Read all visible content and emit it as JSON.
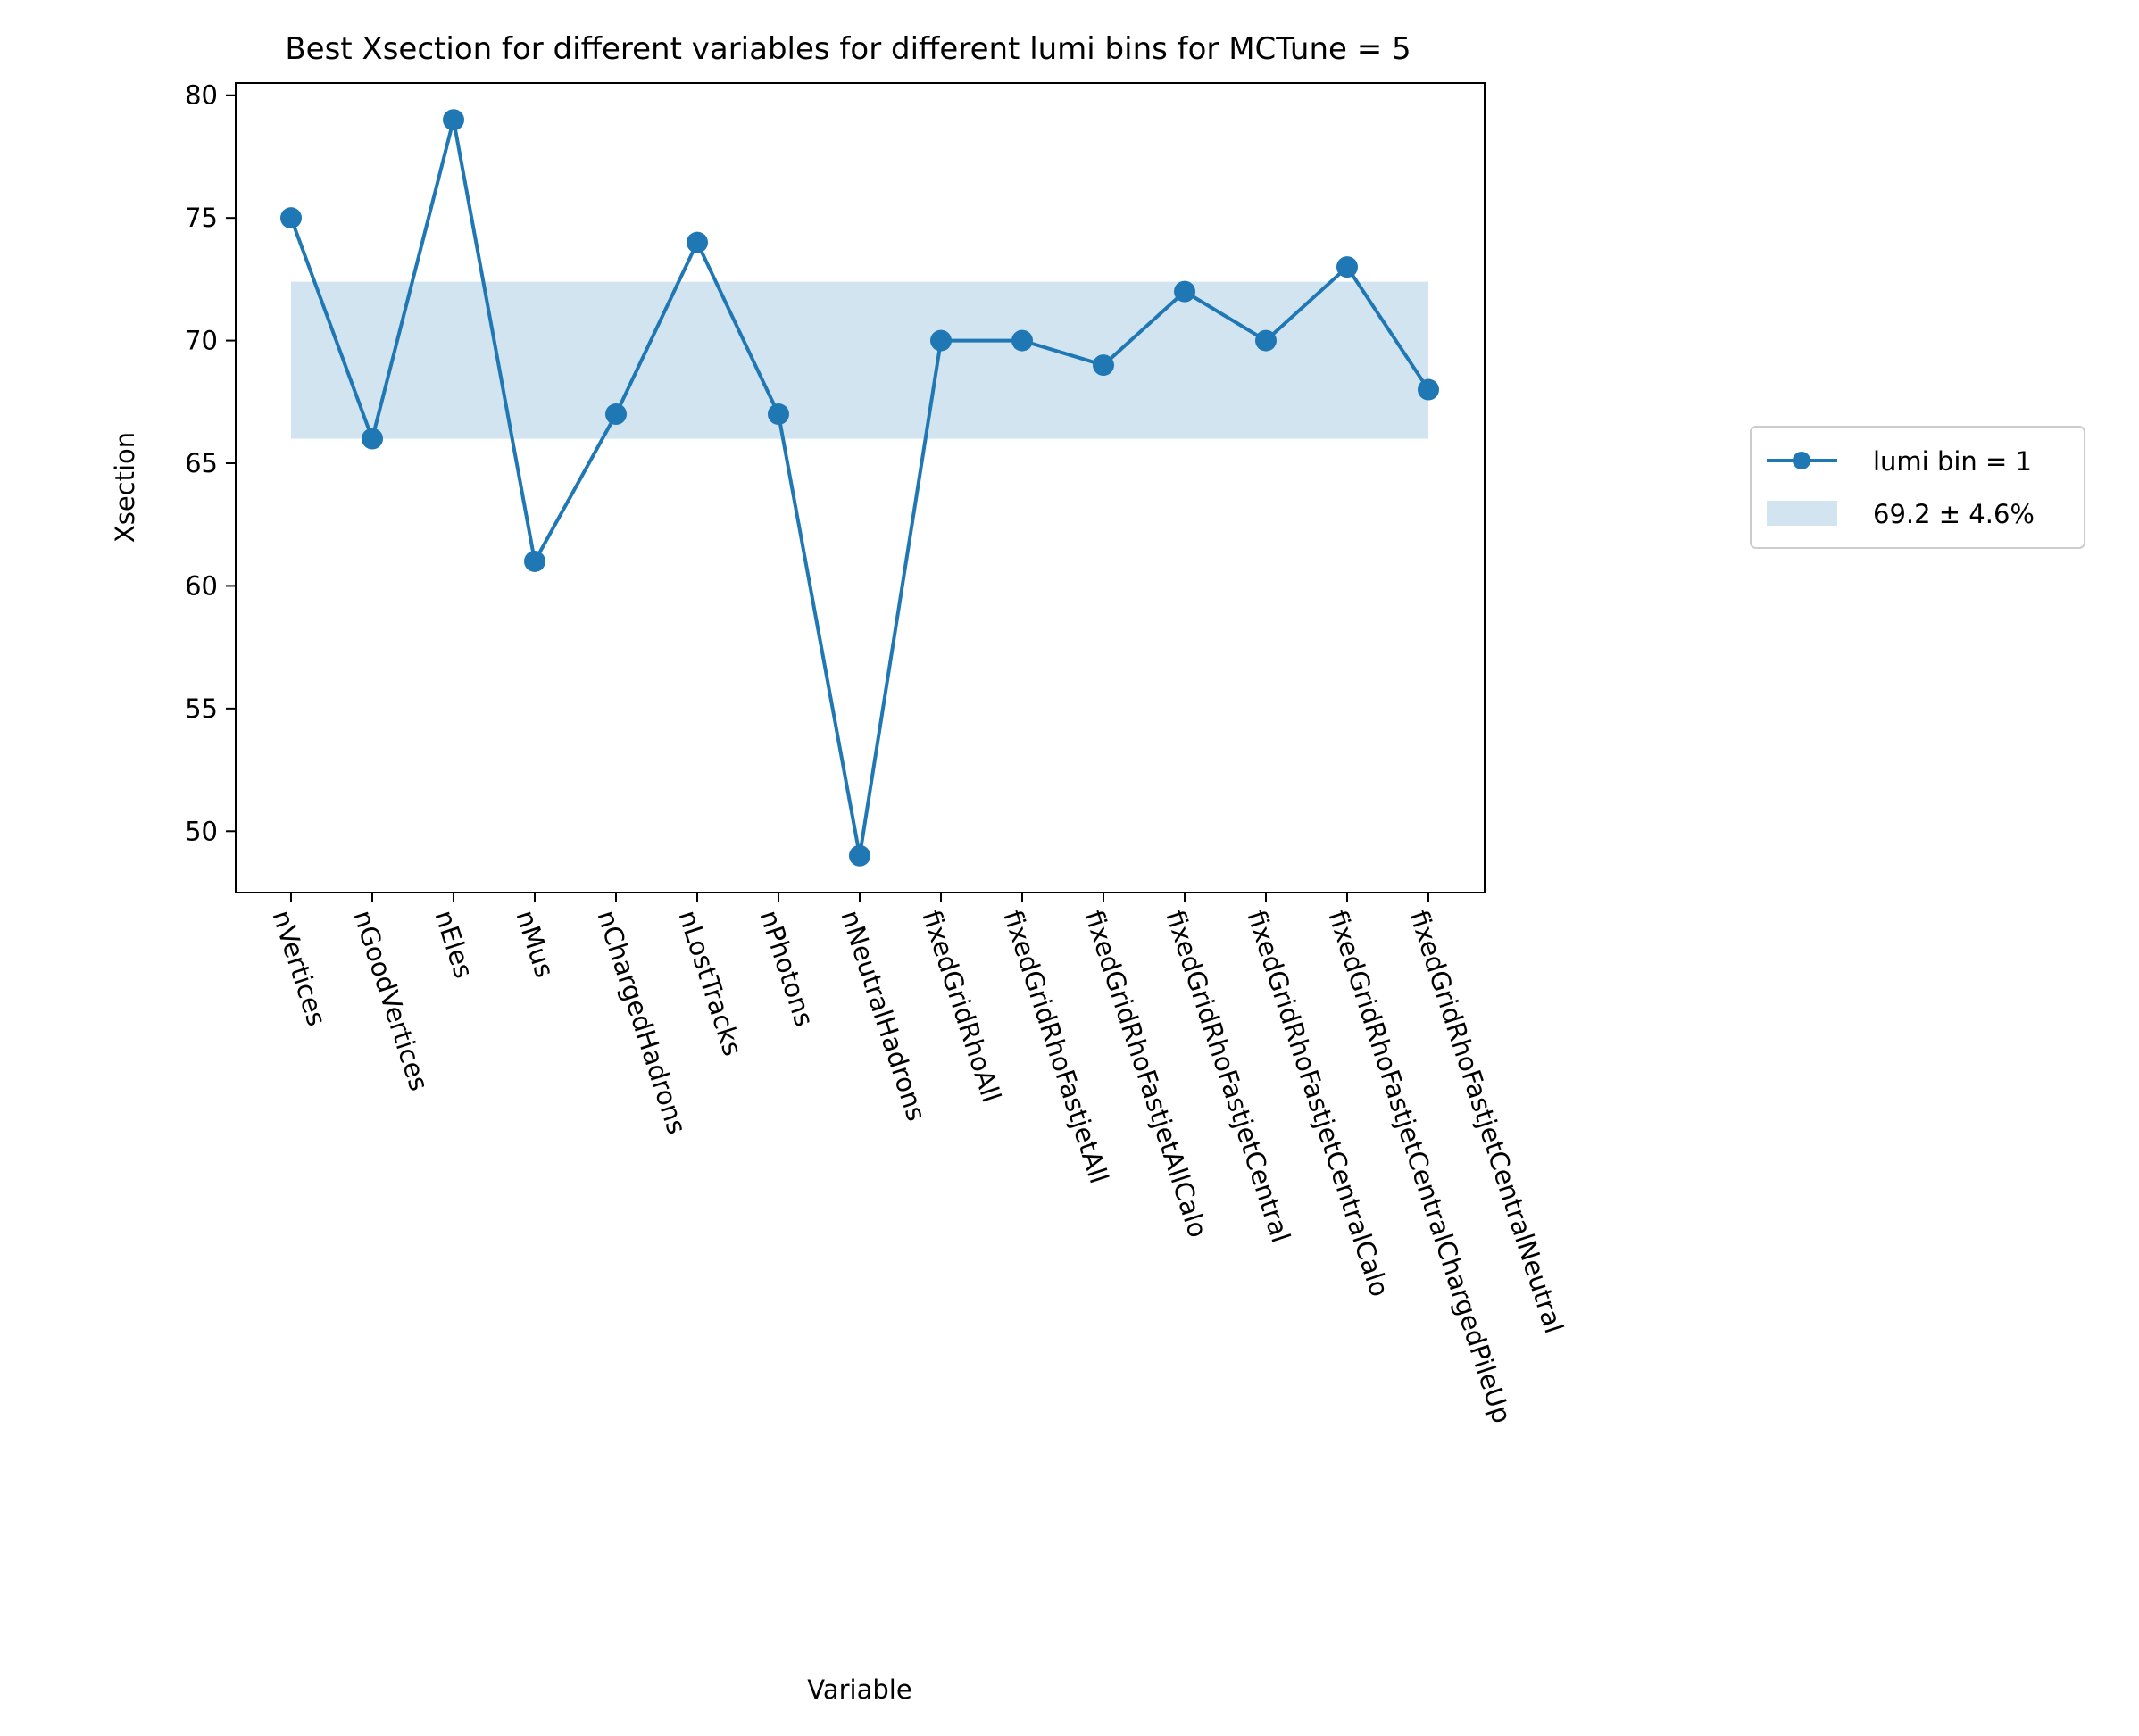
{
  "chart_data": {
    "type": "line",
    "title": "Best Xsection for different variables for different lumi bins for MCTune = 5",
    "xlabel": "Variable",
    "ylabel": "Xsection",
    "ylim": [
      47.5,
      80.5
    ],
    "yticks": [
      50,
      55,
      60,
      65,
      70,
      75,
      80
    ],
    "grid": false,
    "legend_position": "right",
    "categories": [
      "nVertices",
      "nGoodVertices",
      "nEles",
      "nMus",
      "nChargedHadrons",
      "nLostTracks",
      "nPhotons",
      "nNeutralHadrons",
      "fixedGridRhoAll",
      "fixedGridRhoFastjetAll",
      "fixedGridRhoFastjetAllCalo",
      "fixedGridRhoFastjetCentral",
      "fixedGridRhoFastjetCentralCalo",
      "fixedGridRhoFastjetCentralChargedPileUp",
      "fixedGridRhoFastjetCentralNeutral"
    ],
    "series": [
      {
        "name": "lumi bin = 1",
        "values": [
          75,
          66,
          79,
          61,
          67,
          74,
          67,
          49,
          70,
          70,
          69,
          72,
          70,
          73,
          68
        ],
        "color": "#1f77b4"
      }
    ],
    "band": {
      "label": "69.2 ± 4.6%",
      "ymin": 66.0,
      "ymax": 72.4,
      "color": "#1f77b4",
      "opacity": 0.2
    }
  }
}
